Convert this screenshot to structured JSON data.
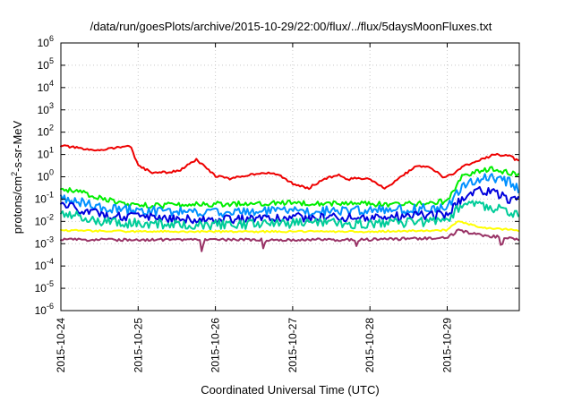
{
  "chart_data": {
    "type": "line",
    "title": "/data/run/goesPlots/archive/2015-10-29/22:00/flux/../flux/5daysMoonFluxes.txt",
    "xlabel": "Coordinated Universal Time (UTC)",
    "ylabel": {
      "base": "protons/cm",
      "sup": "2",
      "rest": "-s-sr-MeV"
    },
    "x_ticks": [
      "2015-10-24",
      "2015-10-25",
      "2015-10-26",
      "2015-10-27",
      "2015-10-28",
      "2015-10-29"
    ],
    "xlim": [
      "2015-10-24 00:00",
      "2015-10-29 22:00"
    ],
    "y_scale": "log",
    "ylim": [
      1e-06,
      1000000.0
    ],
    "y_ticks": [
      {
        "value": 1e-06,
        "base": "10",
        "exp": "-6"
      },
      {
        "value": 1e-05,
        "base": "10",
        "exp": "-5"
      },
      {
        "value": 0.0001,
        "base": "10",
        "exp": "-4"
      },
      {
        "value": 0.001,
        "base": "10",
        "exp": "-3"
      },
      {
        "value": 0.01,
        "base": "10",
        "exp": "-2"
      },
      {
        "value": 0.1,
        "base": "10",
        "exp": "-1"
      },
      {
        "value": 1.0,
        "base": "10",
        "exp": "0"
      },
      {
        "value": 10.0,
        "base": "10",
        "exp": "1"
      },
      {
        "value": 100.0,
        "base": "10",
        "exp": "2"
      },
      {
        "value": 1000.0,
        "base": "10",
        "exp": "3"
      },
      {
        "value": 10000.0,
        "base": "10",
        "exp": "4"
      },
      {
        "value": 100000.0,
        "base": "10",
        "exp": "5"
      },
      {
        "value": 1000000.0,
        "base": "10",
        "exp": "6"
      }
    ],
    "grid": true,
    "legend": "none",
    "series": [
      {
        "color": "#ee0000",
        "noise": 0.05,
        "points": [
          [
            0,
            25
          ],
          [
            0.2,
            20
          ],
          [
            0.4,
            15
          ],
          [
            0.6,
            18
          ],
          [
            0.8,
            22
          ],
          [
            0.9,
            25
          ],
          [
            1.0,
            3
          ],
          [
            1.2,
            1.5
          ],
          [
            1.4,
            1.6
          ],
          [
            1.55,
            2
          ],
          [
            1.7,
            4.5
          ],
          [
            1.75,
            6
          ],
          [
            1.85,
            3
          ],
          [
            2.0,
            1.1
          ],
          [
            2.2,
            0.8
          ],
          [
            2.4,
            1.2
          ],
          [
            2.6,
            1.5
          ],
          [
            2.8,
            1.3
          ],
          [
            3.0,
            0.5
          ],
          [
            3.2,
            0.3
          ],
          [
            3.4,
            0.8
          ],
          [
            3.6,
            1.2
          ],
          [
            3.7,
            0.7
          ],
          [
            3.8,
            0.9
          ],
          [
            4.0,
            0.8
          ],
          [
            4.2,
            0.3
          ],
          [
            4.4,
            1
          ],
          [
            4.6,
            3
          ],
          [
            4.8,
            2.5
          ],
          [
            4.95,
            0.9
          ],
          [
            5.1,
            1.5
          ],
          [
            5.2,
            3
          ],
          [
            5.4,
            5
          ],
          [
            5.6,
            10
          ],
          [
            5.8,
            9
          ],
          [
            5.92,
            5
          ]
        ]
      },
      {
        "color": "#00ee00",
        "noise": 0.12,
        "points": [
          [
            0,
            0.3
          ],
          [
            0.2,
            0.22
          ],
          [
            0.5,
            0.12
          ],
          [
            0.8,
            0.06
          ],
          [
            1.0,
            0.05
          ],
          [
            2.0,
            0.06
          ],
          [
            3.0,
            0.07
          ],
          [
            4.0,
            0.06
          ],
          [
            4.6,
            0.06
          ],
          [
            5.0,
            0.08
          ],
          [
            5.1,
            0.3
          ],
          [
            5.2,
            1.2
          ],
          [
            5.4,
            1.8
          ],
          [
            5.6,
            2.2
          ],
          [
            5.8,
            1.5
          ],
          [
            5.92,
            1.3
          ]
        ]
      },
      {
        "color": "#0090ff",
        "noise": 0.22,
        "points": [
          [
            0,
            0.12
          ],
          [
            0.2,
            0.08
          ],
          [
            0.5,
            0.04
          ],
          [
            1.0,
            0.03
          ],
          [
            2.0,
            0.025
          ],
          [
            3.0,
            0.03
          ],
          [
            4.0,
            0.03
          ],
          [
            5.0,
            0.04
          ],
          [
            5.1,
            0.15
          ],
          [
            5.2,
            0.4
          ],
          [
            5.4,
            0.8
          ],
          [
            5.6,
            0.9
          ],
          [
            5.8,
            0.6
          ],
          [
            5.92,
            0.3
          ]
        ]
      },
      {
        "color": "#0000dd",
        "noise": 0.2,
        "points": [
          [
            0,
            0.06
          ],
          [
            0.3,
            0.03
          ],
          [
            0.6,
            0.02
          ],
          [
            1.0,
            0.015
          ],
          [
            2.0,
            0.012
          ],
          [
            3.0,
            0.015
          ],
          [
            4.0,
            0.015
          ],
          [
            5.0,
            0.02
          ],
          [
            5.1,
            0.05
          ],
          [
            5.2,
            0.12
          ],
          [
            5.4,
            0.25
          ],
          [
            5.6,
            0.2
          ],
          [
            5.8,
            0.1
          ],
          [
            5.92,
            0.08
          ]
        ]
      },
      {
        "color": "#00cc99",
        "noise": 0.22,
        "points": [
          [
            0,
            0.025
          ],
          [
            0.5,
            0.01
          ],
          [
            1.0,
            0.008
          ],
          [
            2.0,
            0.007
          ],
          [
            3.0,
            0.008
          ],
          [
            4.0,
            0.008
          ],
          [
            5.0,
            0.01
          ],
          [
            5.1,
            0.03
          ],
          [
            5.2,
            0.05
          ],
          [
            5.4,
            0.06
          ],
          [
            5.6,
            0.04
          ],
          [
            5.8,
            0.025
          ],
          [
            5.92,
            0.02
          ]
        ]
      },
      {
        "color": "#ffff00",
        "noise": 0.04,
        "points": [
          [
            0,
            0.004
          ],
          [
            1.0,
            0.0035
          ],
          [
            2.0,
            0.0035
          ],
          [
            3.0,
            0.0035
          ],
          [
            4.0,
            0.0035
          ],
          [
            5.0,
            0.004
          ],
          [
            5.1,
            0.008
          ],
          [
            5.15,
            0.01
          ],
          [
            5.3,
            0.007
          ],
          [
            5.5,
            0.005
          ],
          [
            5.7,
            0.0045
          ],
          [
            5.92,
            0.004
          ]
        ]
      },
      {
        "color": "#993366",
        "noise": 0.06,
        "points": [
          [
            0,
            0.0015
          ],
          [
            1.0,
            0.0015
          ],
          [
            1.8,
            0.0015
          ],
          [
            1.82,
            0.0005
          ],
          [
            1.86,
            0.0015
          ],
          [
            2.6,
            0.0015
          ],
          [
            2.62,
            0.0006
          ],
          [
            2.66,
            0.0015
          ],
          [
            3.8,
            0.0015
          ],
          [
            3.82,
            0.0007
          ],
          [
            3.86,
            0.0015
          ],
          [
            5.0,
            0.0018
          ],
          [
            5.15,
            0.004
          ],
          [
            5.3,
            0.003
          ],
          [
            5.5,
            0.0022
          ],
          [
            5.68,
            0.002
          ],
          [
            5.7,
            0.0006
          ],
          [
            5.74,
            0.0018
          ],
          [
            5.92,
            0.0015
          ]
        ]
      }
    ]
  }
}
